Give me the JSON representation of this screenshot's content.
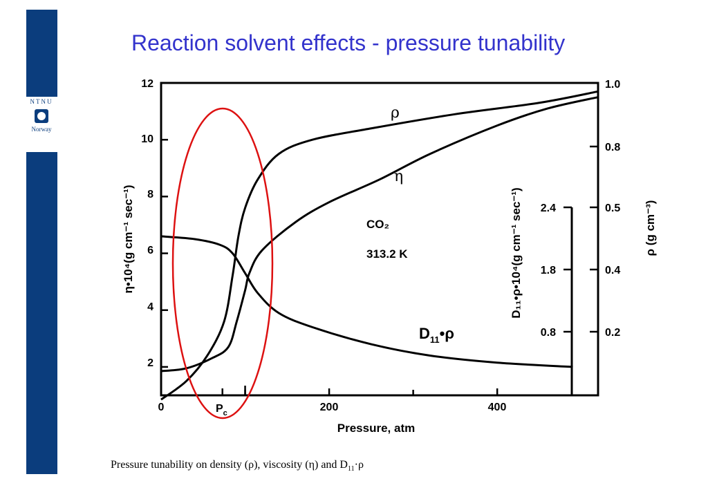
{
  "slide": {
    "title": "Reaction solvent effects - pressure tunability",
    "caption_main": "Pressure tunability on density (ρ), viscosity (η) and D",
    "caption_sub": "11",
    "caption_tail": "·ρ",
    "logo_top": "NTNU",
    "logo_bottom": "Norway",
    "colors": {
      "title": "#3333cc",
      "sidebar": "#0b3d7d",
      "ellipse": "#dd1111"
    }
  },
  "chart_data": {
    "type": "line",
    "xlabel": "Pressure, atm",
    "xlim": [
      0,
      520
    ],
    "xticks": [
      0,
      200,
      400
    ],
    "pc_label": "P",
    "pc_sub": "c",
    "pc_x": 73,
    "left_axis": {
      "label": "η•10⁴(g cm⁻¹ sec⁻¹)",
      "ylim": [
        1,
        12
      ],
      "ticks": [
        2,
        4,
        6,
        8,
        10,
        12
      ]
    },
    "right_axis": {
      "label": "ρ (g cm⁻³)",
      "ticks": [
        "1.0",
        "0.8",
        "0.5",
        "0.4",
        "0.2"
      ]
    },
    "inner_axis": {
      "label": "D₁₁•ρ•10⁴(g cm⁻¹ sec⁻¹)",
      "ticks": [
        "2.4",
        "1.8",
        "0.8"
      ]
    },
    "annotations": {
      "co2": "CO₂",
      "temperature": "313.2 K"
    },
    "series": [
      {
        "name": "ρ",
        "x": [
          0,
          30,
          55,
          75,
          85,
          92,
          100,
          115,
          140,
          180,
          250,
          350,
          450,
          520
        ],
        "y": [
          0.85,
          1.5,
          2.4,
          3.6,
          5.2,
          6.6,
          7.6,
          8.6,
          9.5,
          10.0,
          10.4,
          10.9,
          11.3,
          11.7
        ]
      },
      {
        "name": "η",
        "x": [
          0,
          30,
          60,
          80,
          90,
          100,
          105,
          120,
          160,
          200,
          260,
          320,
          400,
          460,
          520
        ],
        "y": [
          1.85,
          1.95,
          2.3,
          2.7,
          3.6,
          4.7,
          5.3,
          6.1,
          7.1,
          7.8,
          8.6,
          9.5,
          10.5,
          11.1,
          11.5
        ]
      },
      {
        "name": "D₁₁•ρ",
        "x": [
          0,
          40,
          70,
          85,
          100,
          115,
          140,
          180,
          250,
          320,
          400,
          490
        ],
        "y": [
          6.6,
          6.5,
          6.3,
          6.0,
          5.3,
          4.6,
          3.9,
          3.4,
          2.8,
          2.4,
          2.15,
          2.0
        ]
      }
    ]
  }
}
